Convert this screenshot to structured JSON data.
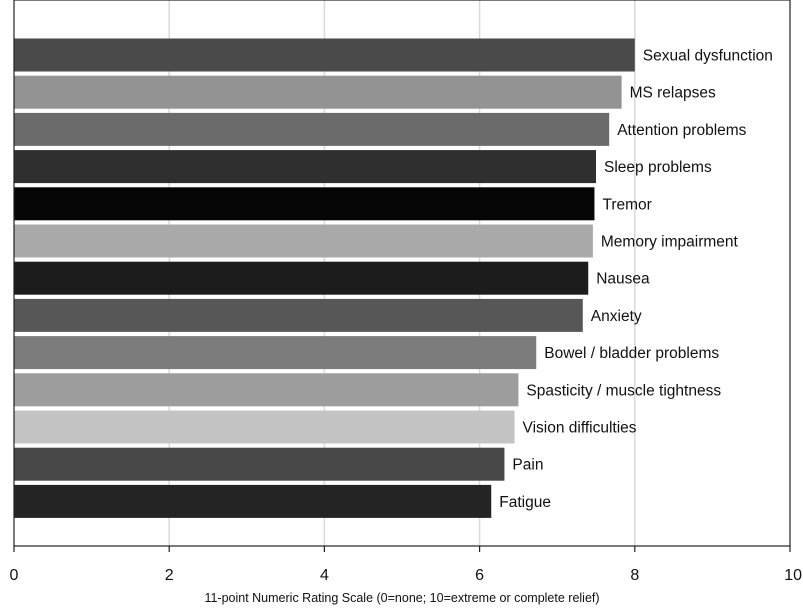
{
  "chart_data": {
    "type": "bar",
    "orientation": "horizontal",
    "title": "",
    "xlabel": "11-point Numeric Rating Scale (0=none; 10=extreme or complete relief)",
    "ylabel": "",
    "xlim": [
      0,
      10
    ],
    "xticks": [
      0,
      2,
      4,
      6,
      8,
      10
    ],
    "grid": true,
    "legend": "none",
    "categories": [
      "Sexual dysfunction",
      "MS relapses",
      "Attention problems",
      "Sleep problems",
      "Tremor",
      "Memory impairment",
      "Nausea",
      "Anxiety",
      "Bowel / bladder problems",
      "Spasticity / muscle tightness",
      "Vision difficulties",
      "Pain",
      "Fatigue"
    ],
    "values": [
      8.0,
      7.83,
      7.67,
      7.5,
      7.48,
      7.46,
      7.4,
      7.33,
      6.73,
      6.5,
      6.45,
      6.32,
      6.15
    ],
    "bar_colors": [
      "#4a4a4a",
      "#939393",
      "#6b6b6b",
      "#2f2f2f",
      "#050505",
      "#a9a9a9",
      "#1c1c1c",
      "#575757",
      "#7c7c7c",
      "#9d9d9d",
      "#c4c4c4",
      "#474747",
      "#242424"
    ]
  }
}
